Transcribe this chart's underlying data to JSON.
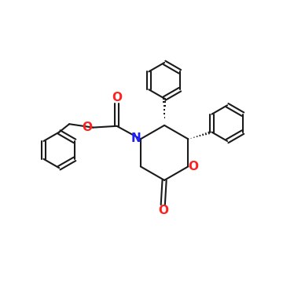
{
  "bg_color": "#FFFFFF",
  "bond_color": "#1a1a1a",
  "N_color": "#2020FF",
  "O_color": "#FF2020",
  "bond_width": 1.5,
  "figsize": [
    3.74,
    3.75
  ],
  "dpi": 100,
  "xlim": [
    0,
    10
  ],
  "ylim": [
    0,
    10
  ]
}
